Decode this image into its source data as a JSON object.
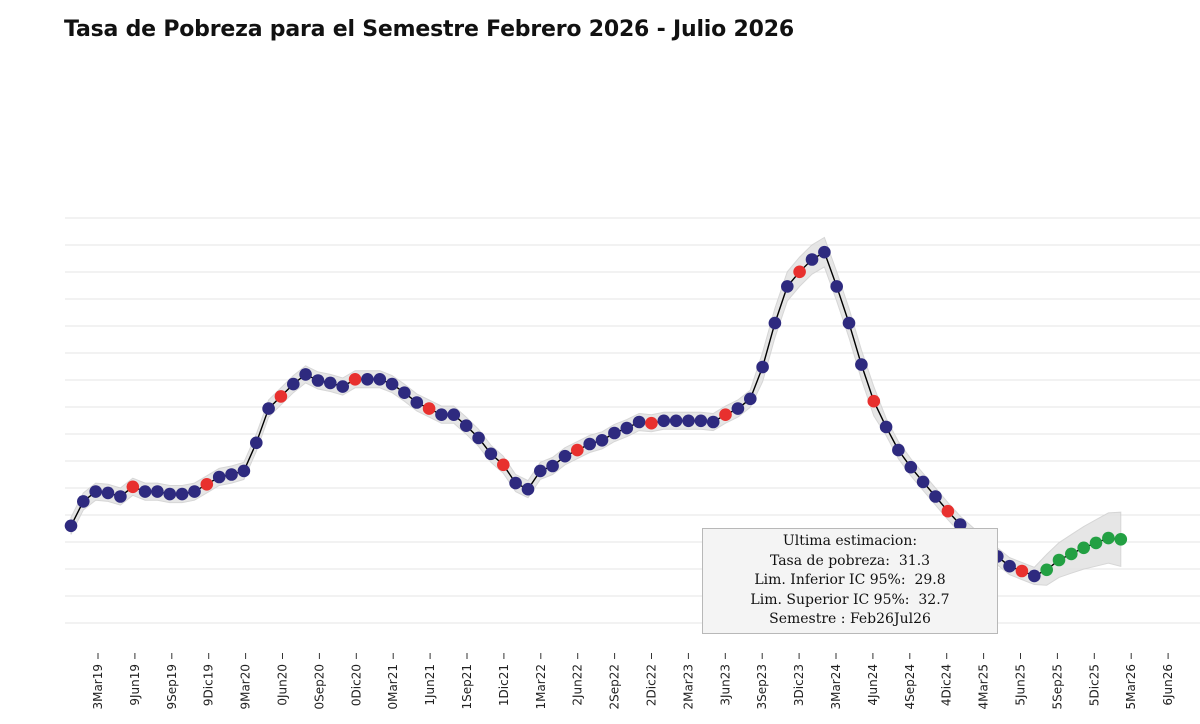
{
  "title": "Tasa de Pobreza para el Semestre Febrero 2026 - Julio 2026",
  "annotation": {
    "heading": "Ultima estimacion:",
    "line1": "Tasa de pobreza:  31.3",
    "line2": "Lim. Inferior IC 95%:  29.8",
    "line3": "Lim. Superior IC 95%:  32.7",
    "line4": "Semestre : Feb26Jul26"
  },
  "colors": {
    "line": "#000000",
    "point_default": "#2e2a7f",
    "point_highlight": "#e8302e",
    "point_forecast": "#23a043",
    "ci_band": "#e2e2e2",
    "grid": "#e6e6e6"
  },
  "chart_data": {
    "type": "line",
    "ylim": [
      27,
      44.6
    ],
    "grid": true,
    "tick_labels": [
      "3Mar19",
      "9Jun19",
      "9Sep19",
      "9Dic19",
      "9Mar20",
      "0Jun20",
      "0Sep20",
      "0Dic20",
      "0Mar21",
      "1Jun21",
      "1Sep21",
      "1Dic21",
      "1Mar22",
      "2Jun22",
      "2Sep22",
      "2Dic22",
      "2Mar23",
      "3Jun23",
      "3Sep23",
      "3Dic23",
      "3Mar24",
      "4Jun24",
      "4Sep24",
      "4Dic24",
      "4Mar25",
      "5Jun25",
      "5Sep25",
      "5Dic25",
      "5Mar26",
      "6Jun26"
    ],
    "series": [
      {
        "values": [
          32.0,
          33.0,
          33.4,
          33.35,
          33.2,
          33.6,
          33.4,
          33.4,
          33.3,
          33.3,
          33.4,
          33.7,
          34.0,
          34.1,
          34.25,
          35.4,
          36.8,
          37.3,
          37.8,
          38.2,
          37.95,
          37.85,
          37.7,
          38.0,
          38.0,
          38.0,
          37.8,
          37.45,
          37.05,
          36.8,
          36.55,
          36.55,
          36.1,
          35.6,
          34.95,
          34.5,
          33.75,
          33.5,
          34.25,
          34.45,
          34.85,
          35.1,
          35.35,
          35.5,
          35.8,
          36.0,
          36.25,
          36.2,
          36.3,
          36.3,
          36.3,
          36.3,
          36.25,
          36.55,
          36.8,
          37.2,
          38.5,
          40.3,
          41.8,
          42.4,
          42.9,
          43.2,
          41.8,
          40.3,
          38.6,
          37.1,
          36.05,
          35.1,
          34.4,
          33.8,
          33.2,
          32.6,
          32.05,
          31.6,
          31.15,
          30.75,
          30.35,
          30.15,
          29.95
        ],
        "categories_highlight_indices": [
          5,
          11,
          17,
          23,
          29,
          35,
          41,
          47,
          53,
          59,
          65,
          71,
          77
        ],
        "forecast_values": [
          30.2,
          30.6,
          30.85,
          31.1,
          31.3,
          31.5,
          31.45
        ],
        "ci_lower": [
          29.8
        ],
        "ci_upper": [
          32.7
        ]
      }
    ]
  }
}
